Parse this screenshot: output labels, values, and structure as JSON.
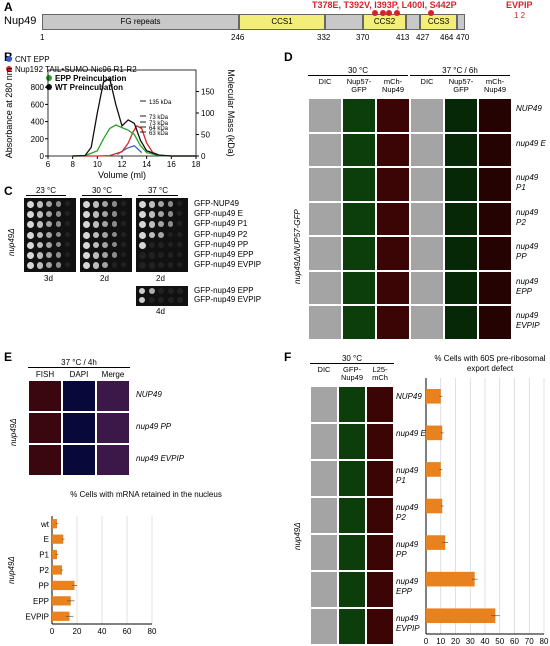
{
  "panels": {
    "A": "A",
    "B": "B",
    "C": "C",
    "D": "D",
    "E": "E",
    "F": "F"
  },
  "panel_a": {
    "protein": "Nup49",
    "domains": [
      "FG repeats",
      "CCS1",
      "CCS2",
      "CCS3"
    ],
    "positions": [
      "1",
      "246",
      "332",
      "370",
      "413",
      "427",
      "464",
      "470"
    ],
    "mutations_label": "T378E, T392V, I393P, L400I, S442P",
    "evpip_label": "EVPIP",
    "evpip_numbers": "1  2"
  },
  "panel_b": {
    "legend": [
      "CNT EPP",
      "Nup192 TAIL•SUMO-Nic96 R1-R2",
      "EPP Preincubation",
      "WT Preincubation"
    ],
    "legend_colors": [
      "#3a5fcd",
      "#d62728",
      "#2ca02c",
      "#111111"
    ],
    "ylabel_left": "Absorbance at 280 nm",
    "ylabel_right": "Molecular Mass (kDa)",
    "xlabel": "Volume (ml)",
    "mass_labels": [
      "135 kDa",
      "73 kDa",
      "73 kDa",
      "64 kDa",
      "63 kDa"
    ]
  },
  "chart_data": {
    "type": "line",
    "xlabel": "Volume (ml)",
    "ylabel": "Absorbance at 280 nm",
    "y2label": "Molecular Mass (kDa)",
    "xlim": [
      6,
      18
    ],
    "ylim": [
      0,
      1000
    ],
    "y2lim": [
      0,
      200
    ],
    "xticks": [
      6,
      8,
      10,
      12,
      14,
      16,
      18
    ],
    "yticks": [
      0,
      200,
      400,
      600,
      800
    ],
    "y2ticks": [
      0,
      50,
      100,
      150
    ],
    "series": [
      {
        "name": "CNT EPP",
        "color": "#3a5fcd",
        "x": [
          11.6,
          12.4,
          13.0,
          13.6
        ],
        "y": [
          20,
          90,
          120,
          40
        ]
      },
      {
        "name": "Nup192 TAIL•SUMO-Nic96 R1-R2",
        "color": "#d62728",
        "x": [
          8,
          10,
          11,
          12,
          12.5,
          12.9,
          13.2,
          13.6,
          14,
          14.5,
          15,
          16,
          17,
          18
        ],
        "y": [
          0,
          0,
          5,
          50,
          150,
          280,
          350,
          320,
          150,
          40,
          10,
          0,
          0,
          0
        ]
      },
      {
        "name": "EPP Preincubation",
        "color": "#2ca02c",
        "x": [
          8,
          9,
          10,
          10.5,
          11,
          11.5,
          12,
          12.5,
          13,
          13.5,
          14,
          15,
          16,
          18
        ],
        "y": [
          0,
          5,
          60,
          200,
          320,
          360,
          330,
          300,
          250,
          120,
          40,
          5,
          0,
          0
        ]
      },
      {
        "name": "WT Preincubation",
        "color": "#111111",
        "x": [
          8,
          9,
          9.5,
          10,
          10.5,
          11,
          11.5,
          12,
          12.5,
          13,
          13.5,
          14,
          15,
          16,
          18
        ],
        "y": [
          0,
          5,
          100,
          500,
          860,
          900,
          600,
          350,
          420,
          380,
          180,
          60,
          10,
          0,
          0
        ]
      }
    ]
  },
  "panel_c": {
    "temps": [
      "23 °C",
      "30 °C",
      "37 °C"
    ],
    "days": [
      "3d",
      "2d",
      "2d"
    ],
    "days_extra": "4d",
    "strains": [
      "GFP-NUP49",
      "GFP-nup49 E",
      "GFP-nup49 P1",
      "GFP-nup49 P2",
      "GFP-nup49 PP",
      "GFP-nup49 EPP",
      "GFP-nup49 EVPIP"
    ],
    "strains_extra": [
      "GFP-nup49 EPP",
      "GFP-nup49 EVPIP"
    ],
    "growth": [
      [
        4,
        4,
        4
      ],
      [
        4,
        4,
        4
      ],
      [
        4,
        4,
        4
      ],
      [
        4,
        4,
        3
      ],
      [
        4,
        4,
        1
      ],
      [
        4,
        4,
        0
      ],
      [
        4,
        3,
        0
      ]
    ],
    "growth_extra": [
      2,
      1
    ],
    "side_label": "nup49Δ"
  },
  "panel_d": {
    "conditions": [
      "30 °C",
      "37 °C / 6h"
    ],
    "columns": [
      "DIC",
      "Nup57-GFP",
      "mCh-Nup49",
      "DIC",
      "Nup57-GFP",
      "mCh-Nup49"
    ],
    "rows": [
      "NUP49",
      "nup49 E",
      "nup49 P1",
      "nup49 P2",
      "nup49 PP",
      "nup49 EPP",
      "nup49 EVPIP"
    ],
    "side_label": "nup49Δ/NUP57-GFP"
  },
  "panel_e": {
    "condition": "37 °C / 4h",
    "columns": [
      "FISH",
      "DAPI",
      "Merge"
    ],
    "rows": [
      "NUP49",
      "nup49 PP",
      "nup49 EVPIP"
    ],
    "side_label": "nup49Δ",
    "bar_title": "% Cells with mRNA retained in the nucleus",
    "bar_categories": [
      "wt",
      "E",
      "P1",
      "P2",
      "PP",
      "EPP",
      "EVPIP"
    ],
    "bar_values": [
      4,
      9,
      4,
      8,
      18,
      15,
      14
    ],
    "bar_errors": [
      1,
      1,
      1,
      1,
      2,
      3,
      3
    ],
    "xticks": [
      "0",
      "20",
      "40",
      "60",
      "80"
    ],
    "xmax": 80
  },
  "panel_f": {
    "condition": "30 °C",
    "columns": [
      "DIC",
      "GFP-Nup49",
      "L25-mCh"
    ],
    "rows": [
      "NUP49",
      "nup49 E",
      "nup49 P1",
      "nup49 P2",
      "nup49 PP",
      "nup49 EPP",
      "nup49 EVPIP"
    ],
    "side_label": "nup49Δ",
    "bar_title": "% Cells with 60S pre-ribosomal export defect",
    "bar_values": [
      10,
      11,
      10,
      11,
      13,
      33,
      47
    ],
    "bar_errors": [
      1,
      1,
      1,
      1,
      2,
      2,
      3
    ],
    "xticks": [
      "0",
      "10",
      "20",
      "30",
      "40",
      "50",
      "60",
      "70",
      "80"
    ],
    "xmax": 80
  },
  "colors": {
    "accent": "#d6232a",
    "bar": "#e8821e",
    "domain": "#f3ee7a",
    "fg": "#c8c8c8"
  }
}
